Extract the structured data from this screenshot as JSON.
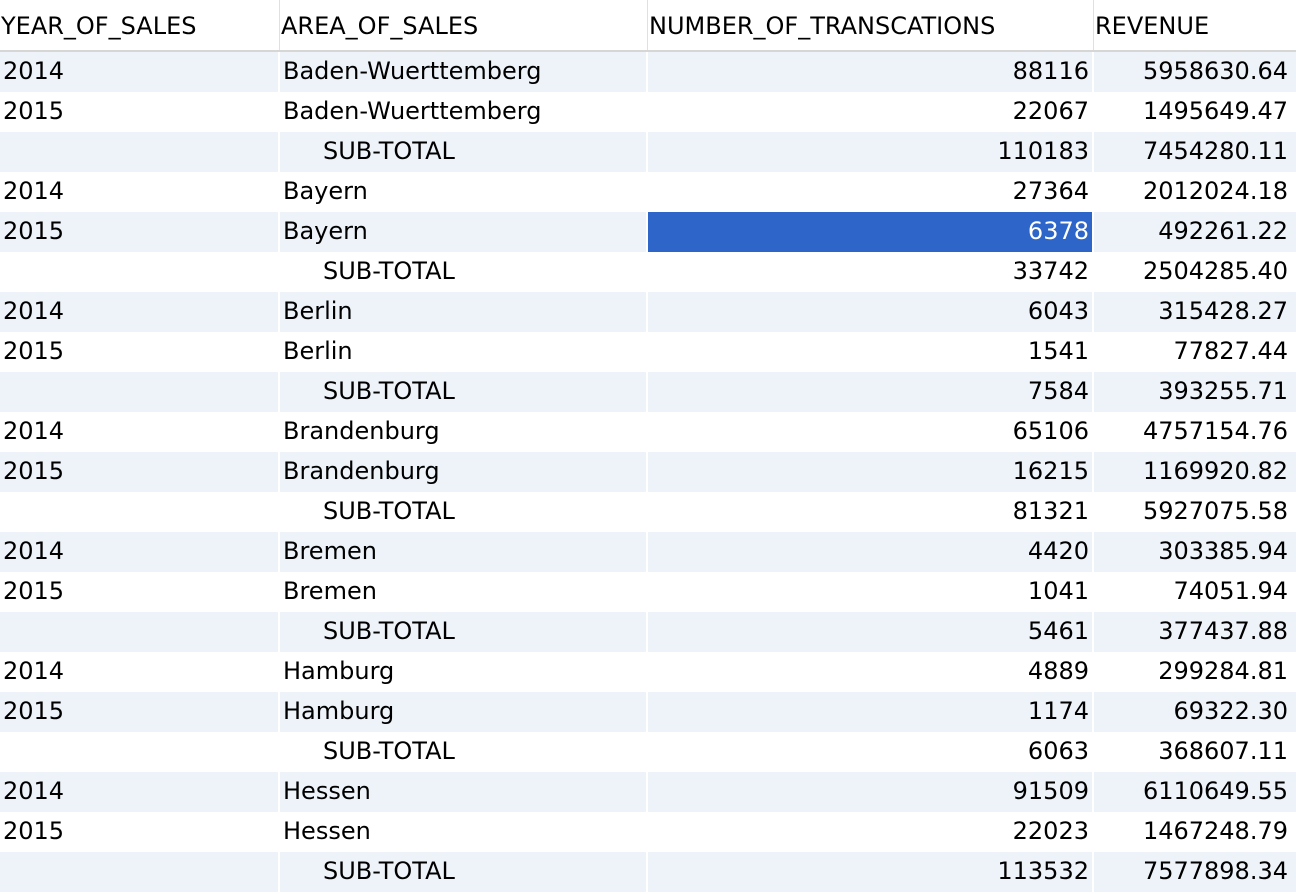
{
  "columns": {
    "year": "YEAR_OF_SALES",
    "area": "AREA_OF_SALES",
    "transactions": "NUMBER_OF_TRANSCATIONS",
    "revenue": "REVENUE"
  },
  "selected_cell": {
    "row": 4,
    "column": "transactions"
  },
  "colors": {
    "stripe": "#edf3f9",
    "selection": "#2e65c8",
    "header_border": "#d6d6d6"
  },
  "rows": [
    {
      "year": "2014",
      "area": "Baden-Wuerttemberg",
      "transactions": "88116",
      "revenue": "5958630.64",
      "subtotal": false
    },
    {
      "year": "2015",
      "area": "Baden-Wuerttemberg",
      "transactions": "22067",
      "revenue": "1495649.47",
      "subtotal": false
    },
    {
      "year": "",
      "area": "SUB-TOTAL",
      "transactions": "110183",
      "revenue": "7454280.11",
      "subtotal": true
    },
    {
      "year": "2014",
      "area": "Bayern",
      "transactions": "27364",
      "revenue": "2012024.18",
      "subtotal": false
    },
    {
      "year": "2015",
      "area": "Bayern",
      "transactions": "6378",
      "revenue": "492261.22",
      "subtotal": false
    },
    {
      "year": "",
      "area": "SUB-TOTAL",
      "transactions": "33742",
      "revenue": "2504285.40",
      "subtotal": true
    },
    {
      "year": "2014",
      "area": "Berlin",
      "transactions": "6043",
      "revenue": "315428.27",
      "subtotal": false
    },
    {
      "year": "2015",
      "area": "Berlin",
      "transactions": "1541",
      "revenue": "77827.44",
      "subtotal": false
    },
    {
      "year": "",
      "area": "SUB-TOTAL",
      "transactions": "7584",
      "revenue": "393255.71",
      "subtotal": true
    },
    {
      "year": "2014",
      "area": "Brandenburg",
      "transactions": "65106",
      "revenue": "4757154.76",
      "subtotal": false
    },
    {
      "year": "2015",
      "area": "Brandenburg",
      "transactions": "16215",
      "revenue": "1169920.82",
      "subtotal": false
    },
    {
      "year": "",
      "area": "SUB-TOTAL",
      "transactions": "81321",
      "revenue": "5927075.58",
      "subtotal": true
    },
    {
      "year": "2014",
      "area": "Bremen",
      "transactions": "4420",
      "revenue": "303385.94",
      "subtotal": false
    },
    {
      "year": "2015",
      "area": "Bremen",
      "transactions": "1041",
      "revenue": "74051.94",
      "subtotal": false
    },
    {
      "year": "",
      "area": "SUB-TOTAL",
      "transactions": "5461",
      "revenue": "377437.88",
      "subtotal": true
    },
    {
      "year": "2014",
      "area": "Hamburg",
      "transactions": "4889",
      "revenue": "299284.81",
      "subtotal": false
    },
    {
      "year": "2015",
      "area": "Hamburg",
      "transactions": "1174",
      "revenue": "69322.30",
      "subtotal": false
    },
    {
      "year": "",
      "area": "SUB-TOTAL",
      "transactions": "6063",
      "revenue": "368607.11",
      "subtotal": true
    },
    {
      "year": "2014",
      "area": "Hessen",
      "transactions": "91509",
      "revenue": "6110649.55",
      "subtotal": false
    },
    {
      "year": "2015",
      "area": "Hessen",
      "transactions": "22023",
      "revenue": "1467248.79",
      "subtotal": false
    },
    {
      "year": "",
      "area": "SUB-TOTAL",
      "transactions": "113532",
      "revenue": "7577898.34",
      "subtotal": true
    }
  ]
}
